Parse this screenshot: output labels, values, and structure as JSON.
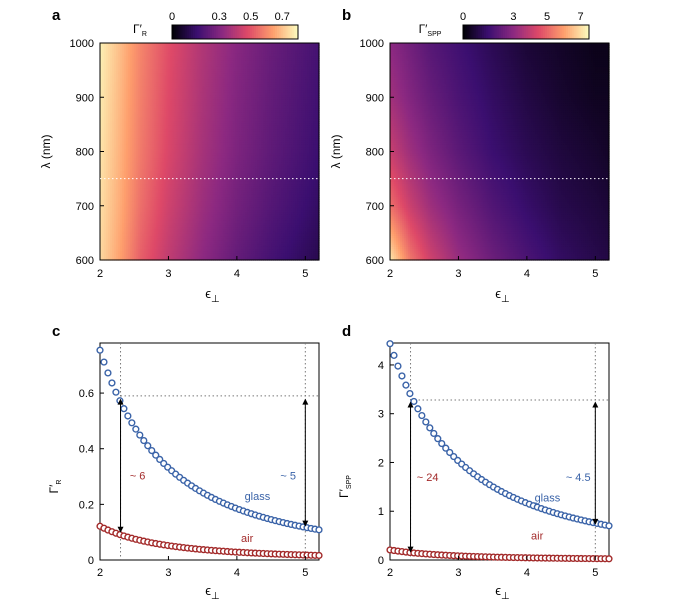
{
  "chart_data": [
    {
      "panel": "a",
      "type": "heatmap",
      "xlabel": "ϵ⊥",
      "ylabel": "λ (nm)",
      "x_ticks": [
        2,
        3,
        4,
        5
      ],
      "y_ticks": [
        600,
        700,
        800,
        900,
        1000
      ],
      "xlim": [
        2,
        5.2
      ],
      "ylim": [
        600,
        1000
      ],
      "colorbar_label": "Γ′R",
      "colorbar_ticks": [
        "0",
        "0.3",
        "0.5",
        "0.7"
      ],
      "colorbar_range": [
        0,
        0.8
      ],
      "colormap": [
        "#000004",
        "#3b0f70",
        "#8c2981",
        "#de4968",
        "#fe9f6d",
        "#fcfdbf"
      ],
      "reference_line_y": 750,
      "rows_lambda": [
        600,
        700,
        800,
        900,
        1000
      ],
      "cols_eps": [
        2.0,
        2.3,
        2.6,
        3.0,
        3.5,
        4.0,
        4.5,
        5.0,
        5.2
      ],
      "values": [
        [
          0.74,
          0.64,
          0.52,
          0.42,
          0.32,
          0.24,
          0.18,
          0.13,
          0.11
        ],
        [
          0.75,
          0.66,
          0.55,
          0.45,
          0.35,
          0.27,
          0.21,
          0.16,
          0.14
        ],
        [
          0.76,
          0.67,
          0.57,
          0.47,
          0.37,
          0.29,
          0.23,
          0.18,
          0.16
        ],
        [
          0.77,
          0.68,
          0.58,
          0.48,
          0.38,
          0.3,
          0.24,
          0.19,
          0.17
        ],
        [
          0.78,
          0.69,
          0.59,
          0.49,
          0.39,
          0.31,
          0.25,
          0.2,
          0.18
        ]
      ]
    },
    {
      "panel": "b",
      "type": "heatmap",
      "xlabel": "ϵ⊥",
      "ylabel": "λ (nm)",
      "x_ticks": [
        2,
        3,
        4,
        5
      ],
      "y_ticks": [
        600,
        700,
        800,
        900,
        1000
      ],
      "xlim": [
        2,
        5.2
      ],
      "ylim": [
        600,
        1000
      ],
      "colorbar_label": "Γ′SPP",
      "colorbar_ticks": [
        "0",
        "3",
        "5",
        "7"
      ],
      "colorbar_range": [
        0,
        7.5
      ],
      "colormap": [
        "#000004",
        "#3b0f70",
        "#8c2981",
        "#de4968",
        "#fe9f6d",
        "#fcfdbf"
      ],
      "reference_line_y": 750,
      "rows_lambda": [
        600,
        700,
        800,
        900,
        1000
      ],
      "cols_eps": [
        2.0,
        2.3,
        2.6,
        3.0,
        3.5,
        4.0,
        4.5,
        5.0,
        5.2
      ],
      "values": [
        [
          7.2,
          5.3,
          4.2,
          3.2,
          2.4,
          1.8,
          1.3,
          1.0,
          0.9
        ],
        [
          5.2,
          4.1,
          3.3,
          2.6,
          1.9,
          1.4,
          1.0,
          0.8,
          0.7
        ],
        [
          4.1,
          3.3,
          2.7,
          2.1,
          1.5,
          1.1,
          0.8,
          0.6,
          0.5
        ],
        [
          3.4,
          2.8,
          2.3,
          1.8,
          1.3,
          0.9,
          0.6,
          0.4,
          0.4
        ],
        [
          3.0,
          2.5,
          2.0,
          1.6,
          1.1,
          0.7,
          0.5,
          0.3,
          0.3
        ]
      ]
    },
    {
      "panel": "c",
      "type": "scatter",
      "xlabel": "ϵ⊥",
      "ylabel": "Γ′R",
      "x_ticks": [
        2,
        3,
        4,
        5
      ],
      "y_ticks": [
        "0",
        "0.2",
        "0.4",
        "0.6"
      ],
      "y_tick_values": [
        0,
        0.2,
        0.4,
        0.6
      ],
      "xlim": [
        2,
        5.2
      ],
      "ylim": [
        0,
        0.78
      ],
      "series": [
        {
          "name": "glass",
          "color": "#3a63a8",
          "formula": "power",
          "a": 3.08,
          "p": 2.03
        },
        {
          "name": "air",
          "color": "#a32a2a",
          "formula": "power",
          "a": 0.52,
          "p": 2.1
        }
      ],
      "marker_eps_range": [
        2.0,
        5.2
      ],
      "marker_count": 56,
      "ref_vline_x": [
        2.3,
        5.0
      ],
      "ref_hline_y": 0.59,
      "arrows": [
        {
          "x": 2.3,
          "from": 0.58,
          "to": 0.098
        },
        {
          "x": 5.0,
          "from": 0.58,
          "to": 0.12
        }
      ],
      "annotations": [
        {
          "text": "~ 6",
          "x": 2.55,
          "y": 0.29,
          "color": "#a32a2a"
        },
        {
          "text": "~ 5",
          "x": 4.75,
          "y": 0.29,
          "color": "#3a63a8"
        },
        {
          "text": "glass",
          "x": 4.3,
          "y": 0.215,
          "color": "#3a63a8"
        },
        {
          "text": "air",
          "x": 4.15,
          "y": 0.065,
          "color": "#a32a2a"
        }
      ]
    },
    {
      "panel": "d",
      "type": "scatter",
      "xlabel": "ϵ⊥",
      "ylabel": "Γ′SPP",
      "x_ticks": [
        2,
        3,
        4,
        5
      ],
      "y_ticks": [
        "0",
        "1",
        "2",
        "3",
        "4"
      ],
      "y_tick_values": [
        0,
        1,
        2,
        3,
        4
      ],
      "xlim": [
        2,
        5.2
      ],
      "ylim": [
        0,
        4.45
      ],
      "series": [
        {
          "name": "glass",
          "color": "#3a63a8",
          "formula": "power",
          "a": 16.9,
          "p": 1.93
        },
        {
          "name": "air",
          "color": "#a32a2a",
          "formula": "power",
          "a": 0.95,
          "p": 2.2
        }
      ],
      "marker_eps_range": [
        2.0,
        5.2
      ],
      "marker_count": 56,
      "ref_vline_x": [
        2.3,
        5.0
      ],
      "ref_hline_y": 3.28,
      "arrows": [
        {
          "x": 2.3,
          "from": 3.25,
          "to": 0.15
        },
        {
          "x": 5.0,
          "from": 3.25,
          "to": 0.72
        }
      ],
      "annotations": [
        {
          "text": "~ 24",
          "x": 2.55,
          "y": 1.62,
          "color": "#a32a2a"
        },
        {
          "text": "~ 4.5",
          "x": 4.75,
          "y": 1.62,
          "color": "#3a63a8"
        },
        {
          "text": "glass",
          "x": 4.3,
          "y": 1.2,
          "color": "#3a63a8"
        },
        {
          "text": "air",
          "x": 4.15,
          "y": 0.42,
          "color": "#a32a2a"
        }
      ]
    }
  ]
}
